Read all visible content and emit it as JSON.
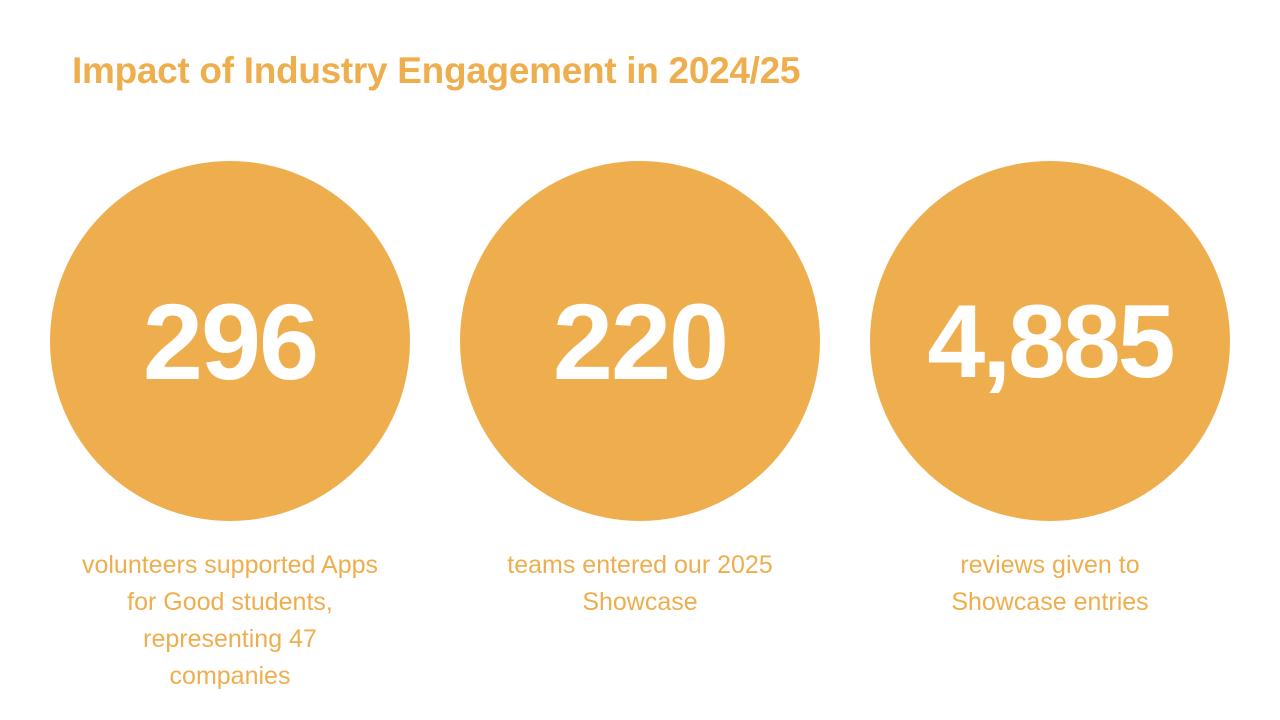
{
  "title": "Impact of Industry Engagement in 2024/25",
  "colors": {
    "accent": "#EFAE4E",
    "number_text": "#FFFFFF",
    "background": "#FFFFFF"
  },
  "stats": [
    {
      "value": "296",
      "caption": "volunteers supported Apps for Good students, representing 47 companies"
    },
    {
      "value": "220",
      "caption": "teams entered our 2025 Showcase"
    },
    {
      "value": "4,885",
      "caption": "reviews given to Showcase entries"
    }
  ]
}
